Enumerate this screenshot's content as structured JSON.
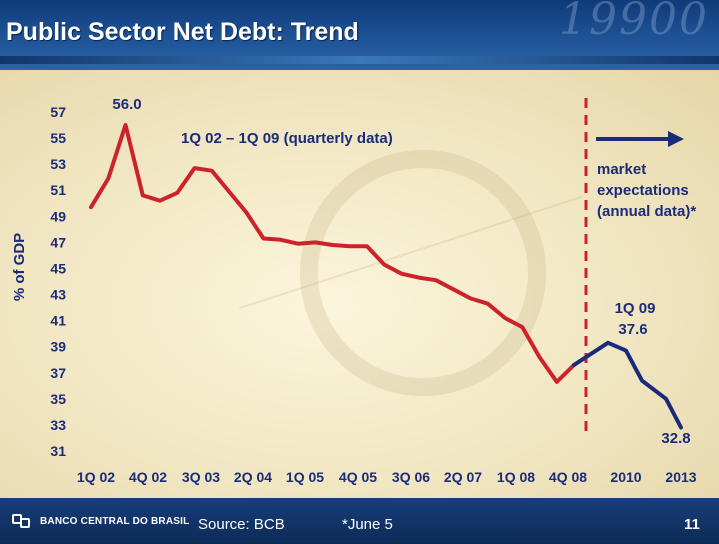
{
  "header": {
    "title": "Public Sector Net Debt: Trend",
    "decor_text": "19900"
  },
  "chart_data": {
    "type": "line",
    "ylabel": "% of GDP",
    "ylim": [
      31,
      57
    ],
    "yticks": [
      "57",
      "55",
      "53",
      "51",
      "49",
      "47",
      "45",
      "43",
      "41",
      "39",
      "37",
      "35",
      "33",
      "31"
    ],
    "x_tick_labels": [
      "1Q 02",
      "4Q 02",
      "3Q 03",
      "2Q 04",
      "1Q 05",
      "4Q 05",
      "3Q 06",
      "2Q 07",
      "1Q 08",
      "4Q 08",
      "2010",
      "2013"
    ],
    "quarterly_series": {
      "label": "1Q 02 – 1Q 09 (quarterly data)",
      "color": "#cc2229",
      "x": [
        "1Q 02",
        "2Q 02",
        "3Q 02",
        "4Q 02",
        "1Q 03",
        "2Q 03",
        "3Q 03",
        "4Q 03",
        "1Q 04",
        "2Q 04",
        "3Q 04",
        "4Q 04",
        "1Q 05",
        "2Q 05",
        "3Q 05",
        "4Q 05",
        "1Q 06",
        "2Q 06",
        "3Q 06",
        "4Q 06",
        "1Q 07",
        "2Q 07",
        "3Q 07",
        "4Q 07",
        "1Q 08",
        "2Q 08",
        "3Q 08",
        "4Q 08",
        "1Q 09"
      ],
      "values": [
        49.7,
        51.9,
        56.0,
        50.6,
        50.2,
        50.8,
        52.7,
        52.5,
        50.9,
        49.3,
        47.3,
        47.2,
        46.9,
        47.0,
        46.8,
        46.7,
        46.7,
        45.3,
        44.6,
        44.3,
        44.1,
        43.4,
        42.7,
        42.3,
        41.2,
        40.5,
        38.2,
        36.3,
        37.6
      ]
    },
    "expectations_series": {
      "label": "market expectations (annual data)*",
      "label_lines": [
        "market",
        "expectations",
        "(annual data)*"
      ],
      "color": "#1a2b7a",
      "x": [
        "1Q 09",
        "2009",
        "2010",
        "2011",
        "2012",
        "2013"
      ],
      "values": [
        37.6,
        39.3,
        38.7,
        36.4,
        35.0,
        32.8
      ]
    },
    "annotations": {
      "peak": "56.0",
      "q1_09_label": "1Q 09",
      "q1_09_value": "37.6",
      "end_value": "32.8"
    }
  },
  "footer": {
    "logo_text": "BANCO CENTRAL DO BRASIL",
    "source": "Source: BCB",
    "footnote": "*June 5",
    "page_number": "11"
  }
}
